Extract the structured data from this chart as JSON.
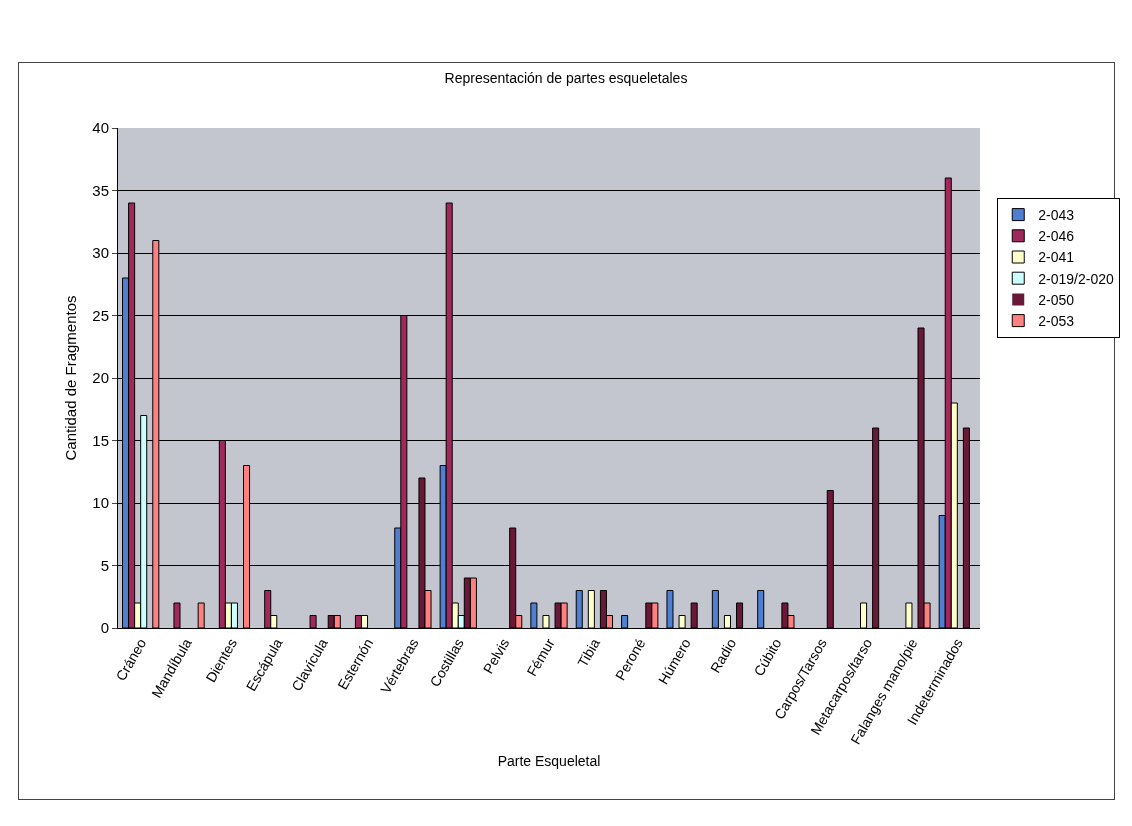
{
  "chart_data": {
    "type": "bar",
    "title": "Representación de partes esqueletales",
    "xlabel": "Parte Esqueletal",
    "ylabel": "Cantidad de Fragmentos",
    "categories": [
      "Cráneo",
      "Mandíbula",
      "Dientes",
      "Escápula",
      "Clavícula",
      "Esternón",
      "Vértebras",
      "Costillas",
      "Pelvis",
      "Fémur",
      "Tibia",
      "Peroné",
      "Húmero",
      "Radio",
      "Cúbito",
      "Carpos/Tarsos",
      "Metacarpos/tarso",
      "Falanges mano/pie",
      "Indeterminados"
    ],
    "series": [
      {
        "name": "2-043",
        "color": "#4f7fd0",
        "values": [
          28,
          0,
          0,
          0,
          0,
          0,
          8,
          13,
          0,
          2,
          3,
          1,
          3,
          3,
          3,
          0,
          0,
          0,
          9
        ]
      },
      {
        "name": "2-046",
        "color": "#a0285a",
        "values": [
          34,
          2,
          15,
          3,
          1,
          1,
          25,
          34,
          0,
          0,
          0,
          0,
          0,
          0,
          0,
          0,
          0,
          0,
          36
        ]
      },
      {
        "name": "2-041",
        "color": "#ffffcc",
        "values": [
          2,
          0,
          2,
          1,
          0,
          1,
          0,
          2,
          0,
          1,
          3,
          0,
          1,
          1,
          0,
          0,
          2,
          2,
          18
        ]
      },
      {
        "name": "2-019/2-020",
        "color": "#ccffff",
        "values": [
          17,
          0,
          2,
          0,
          0,
          0,
          0,
          1,
          0,
          0,
          0,
          0,
          0,
          0,
          0,
          0,
          0,
          0,
          0
        ]
      },
      {
        "name": "2-050",
        "color": "#6a1838",
        "values": [
          0,
          0,
          0,
          0,
          1,
          0,
          12,
          4,
          8,
          2,
          3,
          2,
          2,
          2,
          2,
          11,
          16,
          24,
          16
        ]
      },
      {
        "name": "2-053",
        "color": "#ff8080",
        "values": [
          31,
          2,
          13,
          0,
          1,
          0,
          3,
          4,
          1,
          2,
          1,
          2,
          0,
          0,
          1,
          0,
          0,
          2,
          0
        ]
      }
    ],
    "ylim": [
      0,
      40
    ],
    "yticks": [
      0,
      5,
      10,
      15,
      20,
      25,
      30,
      35,
      40
    ],
    "grid": "y",
    "legend": "right"
  }
}
